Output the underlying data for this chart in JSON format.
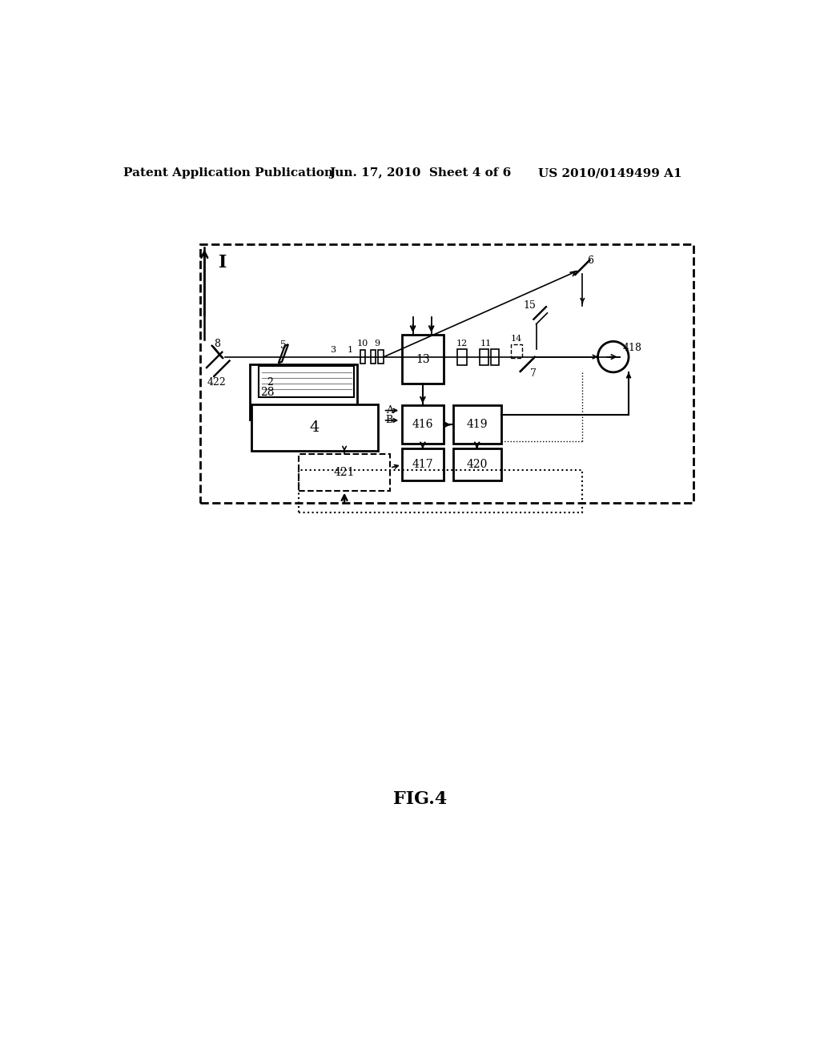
{
  "bg_color": "#ffffff",
  "header_left": "Patent Application Publication",
  "header_center": "Jun. 17, 2010  Sheet 4 of 6",
  "header_right": "US 2010/0149499 A1",
  "caption": "FIG.4",
  "fig_label": "I"
}
